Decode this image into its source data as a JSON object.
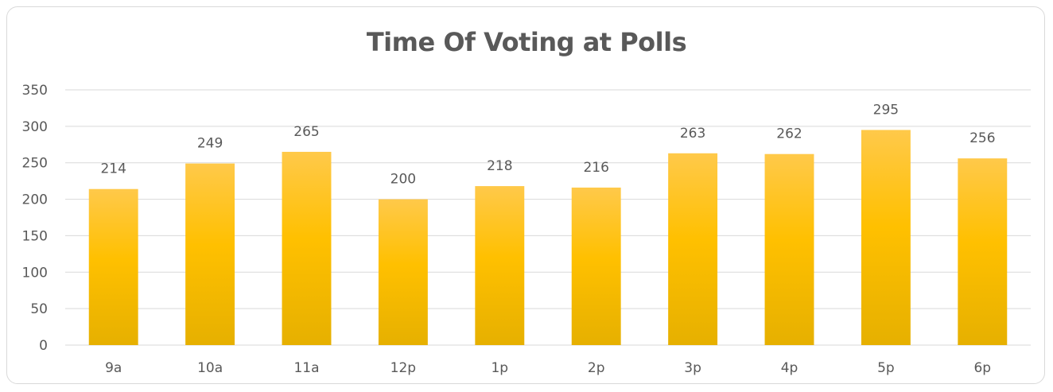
{
  "chart_data": {
    "type": "bar",
    "title": "Time Of Voting at Polls",
    "categories": [
      "9a",
      "10a",
      "11a",
      "12p",
      "1p",
      "2p",
      "3p",
      "4p",
      "5p",
      "6p"
    ],
    "values": [
      214,
      249,
      265,
      200,
      218,
      216,
      263,
      262,
      295,
      256
    ],
    "ylim": [
      0,
      350
    ],
    "yticks": [
      0,
      50,
      100,
      150,
      200,
      250,
      300,
      350
    ],
    "grid": true,
    "legend": "none",
    "data_labels": true,
    "colors": {
      "bar_top": "#ffc94a",
      "bar_mid": "#ffc000",
      "bar_bottom": "#e6b000",
      "grid": "#d9d9d9",
      "text": "#595959"
    }
  }
}
